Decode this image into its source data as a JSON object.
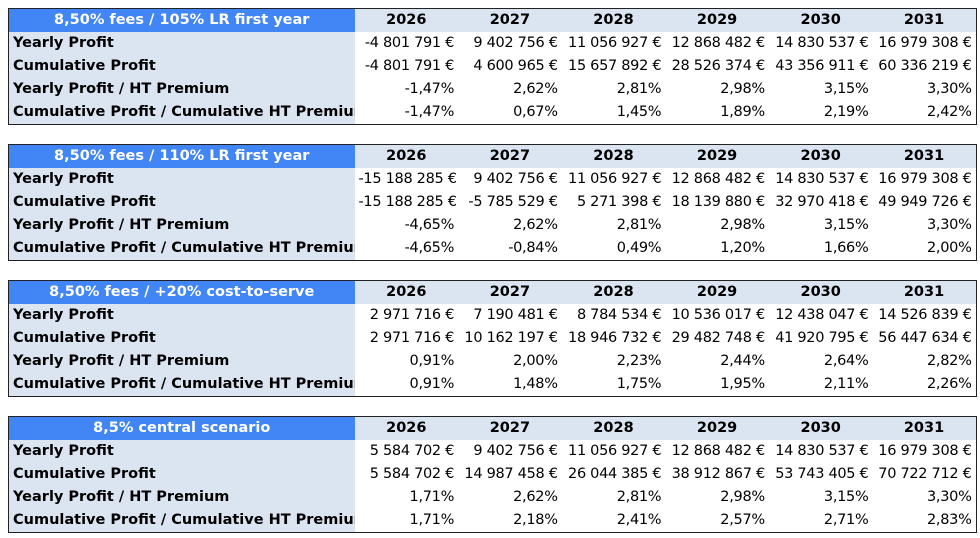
{
  "tables": [
    {
      "title": "8,50% fees / 105% LR first year",
      "years": [
        "2026",
        "2027",
        "2028",
        "2029",
        "2030",
        "2031"
      ],
      "rows": [
        {
          "label": "Yearly Profit",
          "values": [
            "-4 801 791 €",
            "9 402 756 €",
            "11 056 927 €",
            "12 868 482 €",
            "14 830 537 €",
            "16 979 308 €"
          ]
        },
        {
          "label": "Cumulative Profit",
          "values": [
            "-4 801 791 €",
            "4 600 965 €",
            "15 657 892 €",
            "28 526 374 €",
            "43 356 911 €",
            "60 336 219 €"
          ]
        },
        {
          "label": "Yearly Profit / HT Premium",
          "values": [
            "-1,47%",
            "2,62%",
            "2,81%",
            "2,98%",
            "3,15%",
            "3,30%"
          ]
        },
        {
          "label": "Cumulative Profit / Cumulative HT Premium",
          "values": [
            "-1,47%",
            "0,67%",
            "1,45%",
            "1,89%",
            "2,19%",
            "2,42%"
          ]
        }
      ]
    },
    {
      "title": "8,50% fees / 110% LR first year",
      "years": [
        "2026",
        "2027",
        "2028",
        "2029",
        "2030",
        "2031"
      ],
      "rows": [
        {
          "label": "Yearly Profit",
          "values": [
            "-15 188 285 €",
            "9 402 756 €",
            "11 056 927 €",
            "12 868 482 €",
            "14 830 537 €",
            "16 979 308 €"
          ]
        },
        {
          "label": "Cumulative Profit",
          "values": [
            "-15 188 285 €",
            "-5 785 529 €",
            "5 271 398 €",
            "18 139 880 €",
            "32 970 418 €",
            "49 949 726 €"
          ]
        },
        {
          "label": "Yearly Profit / HT Premium",
          "values": [
            "-4,65%",
            "2,62%",
            "2,81%",
            "2,98%",
            "3,15%",
            "3,30%"
          ]
        },
        {
          "label": "Cumulative Profit / Cumulative HT Premium",
          "values": [
            "-4,65%",
            "-0,84%",
            "0,49%",
            "1,20%",
            "1,66%",
            "2,00%"
          ]
        }
      ]
    },
    {
      "title": "8,50% fees / +20% cost-to-serve",
      "years": [
        "2026",
        "2027",
        "2028",
        "2029",
        "2030",
        "2031"
      ],
      "rows": [
        {
          "label": "Yearly Profit",
          "values": [
            "2 971 716 €",
            "7 190 481 €",
            "8 784 534 €",
            "10 536 017 €",
            "12 438 047 €",
            "14 526 839 €"
          ]
        },
        {
          "label": "Cumulative Profit",
          "values": [
            "2 971 716 €",
            "10 162 197 €",
            "18 946 732 €",
            "29 482 748 €",
            "41 920 795 €",
            "56 447 634 €"
          ]
        },
        {
          "label": "Yearly Profit / HT Premium",
          "values": [
            "0,91%",
            "2,00%",
            "2,23%",
            "2,44%",
            "2,64%",
            "2,82%"
          ]
        },
        {
          "label": "Cumulative Profit / Cumulative HT Premium",
          "values": [
            "0,91%",
            "1,48%",
            "1,75%",
            "1,95%",
            "2,11%",
            "2,26%"
          ]
        }
      ]
    },
    {
      "title": "8,5% central scenario",
      "years": [
        "2026",
        "2027",
        "2028",
        "2029",
        "2030",
        "2031"
      ],
      "rows": [
        {
          "label": "Yearly Profit",
          "values": [
            "5 584 702 €",
            "9 402 756 €",
            "11 056 927 €",
            "12 868 482 €",
            "14 830 537 €",
            "16 979 308 €"
          ]
        },
        {
          "label": "Cumulative Profit",
          "values": [
            "5 584 702 €",
            "14 987 458 €",
            "26 044 385 €",
            "38 912 867 €",
            "53 743 405 €",
            "70 722 712 €"
          ]
        },
        {
          "label": "Yearly Profit / HT Premium",
          "values": [
            "1,71%",
            "2,62%",
            "2,81%",
            "2,98%",
            "3,15%",
            "3,30%"
          ]
        },
        {
          "label": "Cumulative Profit / Cumulative HT Premium",
          "values": [
            "1,71%",
            "2,18%",
            "2,41%",
            "2,57%",
            "2,71%",
            "2,83%"
          ]
        }
      ]
    }
  ]
}
